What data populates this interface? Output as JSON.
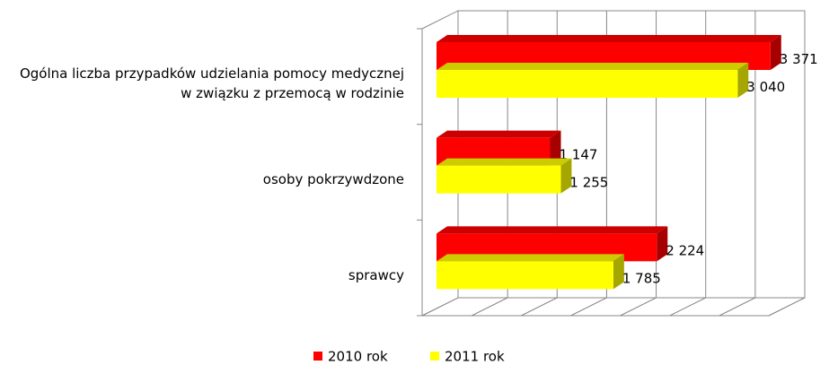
{
  "chart_data": {
    "type": "bar",
    "orientation": "horizontal",
    "categories": [
      "Ogólna liczba przypadków udzielania pomocy medycznej w związku z przemocą w rodzinie",
      "osoby pokrzywdzone",
      "sprawcy"
    ],
    "series": [
      {
        "name": "2010 rok",
        "color": "#ff0000",
        "values": [
          3371,
          1147,
          2224
        ],
        "value_labels": [
          "3 371",
          "1 147",
          "2 224"
        ]
      },
      {
        "name": "2011 rok",
        "color": "#ffff00",
        "values": [
          3040,
          1255,
          1785
        ],
        "value_labels": [
          "3 040",
          "1 255",
          "1 785"
        ]
      }
    ],
    "xlim": [
      0,
      3500
    ],
    "xticks": [
      0,
      500,
      1000,
      1500,
      2000,
      2500,
      3000,
      3500
    ],
    "grid": true
  }
}
